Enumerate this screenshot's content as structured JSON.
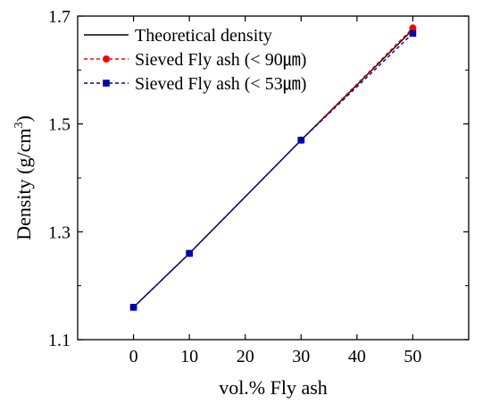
{
  "chart_data": {
    "type": "line",
    "xlabel": "vol.% Fly ash",
    "ylabel": "Density (g/cm",
    "ylabel_sup": "3",
    "ylabel_close": ")",
    "xlim": [
      -10,
      60
    ],
    "ylim": [
      1.1,
      1.7
    ],
    "x_ticks": [
      0,
      10,
      20,
      30,
      40,
      50
    ],
    "y_ticks": [
      1.1,
      1.3,
      1.5,
      1.7
    ],
    "x_tick_labels": [
      "0",
      "10",
      "20",
      "30",
      "40",
      "50"
    ],
    "y_tick_labels": [
      "1.1",
      "1.3",
      "1.5",
      "1.7"
    ],
    "y_minor_ticks": [
      1.2,
      1.4,
      1.6
    ],
    "x": [
      0,
      10,
      30,
      50
    ],
    "grid": false,
    "legend_position": "top-left",
    "series": [
      {
        "name": "Theoretical density",
        "values": [
          1.16,
          1.26,
          1.47,
          1.675
        ],
        "color": "#000000",
        "line": "solid",
        "marker": "none"
      },
      {
        "name": "Sieved Fly ash (< 90㎛)",
        "values": [
          1.16,
          1.26,
          1.47,
          1.678
        ],
        "color": "#ff0000",
        "line": "dashed",
        "marker": "circle"
      },
      {
        "name": "Sieved Fly ash (< 53㎛)",
        "values": [
          1.16,
          1.26,
          1.47,
          1.668
        ],
        "color": "#0000aa",
        "line": "dashed",
        "marker": "square"
      }
    ]
  }
}
